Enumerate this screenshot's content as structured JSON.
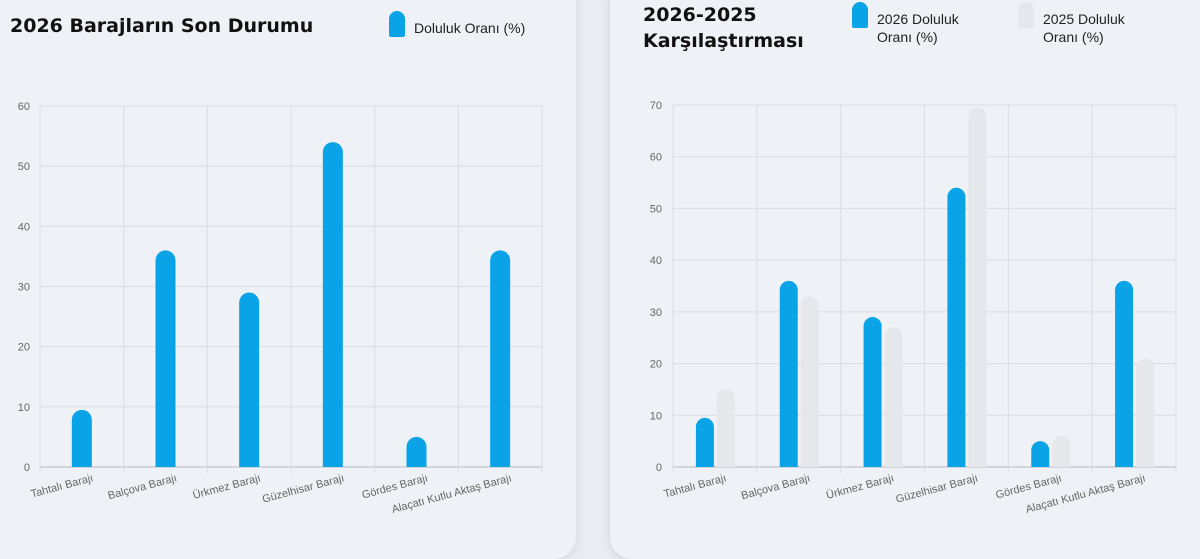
{
  "chart_data": [
    {
      "type": "bar",
      "title": "2026 Barajların Son Durumu",
      "categories": [
        "Tahtalı Barajı",
        "Balçova Barajı",
        "Ürkmez Barajı",
        "Güzelhisar Barajı",
        "Gördes Barajı",
        "Alaçatı Kutlu Aktaş Barajı"
      ],
      "series": [
        {
          "name": "Doluluk Oranı (%)",
          "values": [
            9.5,
            36,
            29,
            54,
            5,
            36
          ],
          "color": "#0aa3e8"
        }
      ],
      "yticks": [
        "0",
        "10",
        "20",
        "30",
        "40",
        "50",
        "60"
      ],
      "ylim": [
        0,
        60
      ],
      "grid": true,
      "legend": "top-right"
    },
    {
      "type": "bar",
      "title_lines": [
        "2026-2025",
        "Karşılaştırması"
      ],
      "categories": [
        "Tahtalı Barajı",
        "Balçova Barajı",
        "Ürkmez Barajı",
        "Güzelhisar Barajı",
        "Gördes Barajı",
        "Alaçatı Kutlu Aktaş Barajı"
      ],
      "series": [
        {
          "name_lines": [
            "2026 Doluluk",
            "Oranı (%)"
          ],
          "values": [
            9.5,
            36,
            29,
            54,
            5,
            36
          ],
          "color": "#0aa3e8"
        },
        {
          "name_lines": [
            "2025 Doluluk",
            "Oranı (%)"
          ],
          "values": [
            15,
            33,
            27,
            69.5,
            6,
            21
          ],
          "color": "#e5e7ea"
        }
      ],
      "yticks": [
        "0",
        "10",
        "20",
        "30",
        "40",
        "50",
        "60",
        "70"
      ],
      "ylim": [
        0,
        70
      ],
      "grid": true,
      "legend": "top-right"
    }
  ]
}
